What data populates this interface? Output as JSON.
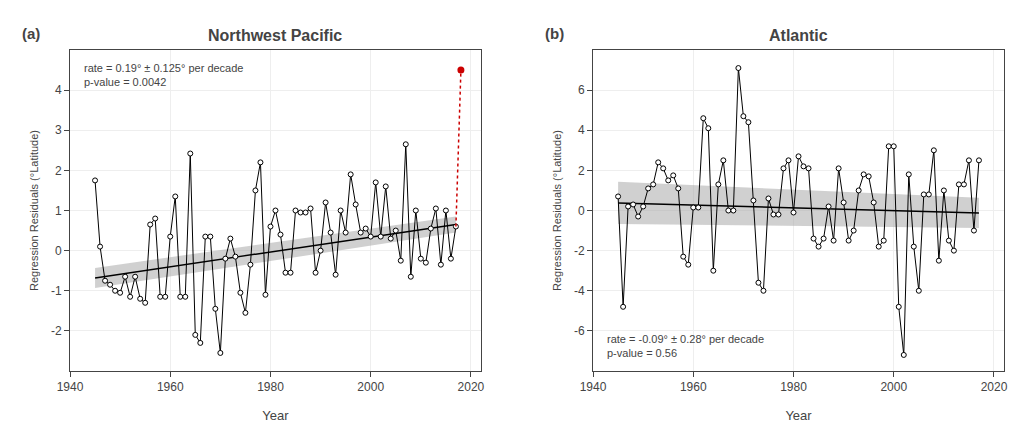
{
  "chart_data": [
    {
      "type": "line",
      "title": "Northwest Pacific",
      "panel_label": "(a)",
      "xlabel": "Year",
      "ylabel": "Regression Residuals (°Latitude)",
      "annotation": [
        "rate = 0.19° ± 0.125° per decade",
        "p-value = 0.0042"
      ],
      "xlim": [
        1940,
        2022
      ],
      "xticks": [
        1940,
        1960,
        1980,
        2000,
        2020
      ],
      "ylim": [
        -3.0,
        5.0
      ],
      "yticks": [
        -2,
        -1,
        0,
        1,
        2,
        3,
        4
      ],
      "grid": true,
      "series": [
        {
          "type": "band",
          "color": "#aaaaaa",
          "x": [
            1945,
            2017
          ],
          "lower": [
            -0.93,
            0.45
          ],
          "upper": [
            -0.43,
            0.85
          ]
        },
        {
          "type": "line",
          "color": "#000000",
          "x": [
            1945,
            2017
          ],
          "values": [
            -0.68,
            0.65
          ]
        },
        {
          "type": "line",
          "color": "#000000",
          "marker": "open circle",
          "x": [
            1945,
            1946,
            1947,
            1948,
            1949,
            1950,
            1951,
            1952,
            1953,
            1954,
            1955,
            1956,
            1957,
            1958,
            1959,
            1960,
            1961,
            1962,
            1963,
            1964,
            1965,
            1966,
            1967,
            1968,
            1969,
            1970,
            1971,
            1972,
            1973,
            1974,
            1975,
            1976,
            1977,
            1978,
            1979,
            1980,
            1981,
            1982,
            1983,
            1984,
            1985,
            1986,
            1987,
            1988,
            1989,
            1990,
            1991,
            1992,
            1993,
            1994,
            1995,
            1996,
            1997,
            1998,
            1999,
            2000,
            2001,
            2002,
            2003,
            2004,
            2005,
            2006,
            2007,
            2008,
            2009,
            2010,
            2011,
            2012,
            2013,
            2014,
            2015,
            2016,
            2017
          ],
          "values": [
            1.75,
            0.1,
            -0.75,
            -0.85,
            -1.0,
            -1.05,
            -0.65,
            -1.15,
            -0.65,
            -1.2,
            -1.3,
            0.65,
            0.8,
            -1.15,
            -1.15,
            0.35,
            1.35,
            -1.15,
            -1.15,
            2.42,
            -2.1,
            -2.3,
            0.35,
            0.35,
            -1.45,
            -2.55,
            -0.2,
            0.3,
            -0.15,
            -1.05,
            -1.55,
            -0.35,
            1.5,
            2.2,
            -1.1,
            0.6,
            1.0,
            0.4,
            -0.55,
            -0.55,
            1.0,
            0.95,
            0.95,
            1.05,
            -0.55,
            0.0,
            1.2,
            0.45,
            -0.6,
            1.0,
            0.45,
            1.9,
            1.15,
            0.45,
            0.55,
            0.35,
            1.7,
            0.35,
            1.6,
            0.3,
            0.5,
            -0.25,
            2.65,
            -0.65,
            1.0,
            -0.2,
            -0.3,
            0.55,
            1.05,
            -0.35,
            1.0,
            -0.2,
            0.6
          ]
        },
        {
          "type": "line",
          "color": "#cc0000",
          "line_style": "dotted",
          "x": [
            2017,
            2018
          ],
          "values": [
            0.6,
            4.5
          ]
        },
        {
          "type": "scatter",
          "color": "#cc0000",
          "x": [
            2018
          ],
          "values": [
            4.5
          ]
        }
      ]
    },
    {
      "type": "line",
      "title": "Atlantic",
      "panel_label": "(b)",
      "xlabel": "Year",
      "ylabel": "Regression Residuals (°Latitude)",
      "annotation": [
        "rate = -0.09° ± 0.28° per decade",
        "p-value = 0.56"
      ],
      "xlim": [
        1940,
        2022
      ],
      "xticks": [
        1940,
        1960,
        1980,
        2000,
        2020
      ],
      "ylim": [
        -8.0,
        8.0
      ],
      "yticks": [
        -6,
        -4,
        -2,
        0,
        2,
        4,
        6
      ],
      "grid": true,
      "series": [
        {
          "type": "band",
          "color": "#aaaaaa",
          "x": [
            1945,
            2017
          ],
          "lower": [
            -0.67,
            -0.87
          ],
          "upper": [
            1.43,
            0.63
          ]
        },
        {
          "type": "line",
          "color": "#000000",
          "x": [
            1945,
            2017
          ],
          "values": [
            0.38,
            -0.12
          ]
        },
        {
          "type": "line",
          "color": "#000000",
          "marker": "open circle",
          "x": [
            1945,
            1946,
            1947,
            1948,
            1949,
            1950,
            1951,
            1952,
            1953,
            1954,
            1955,
            1956,
            1957,
            1958,
            1959,
            1960,
            1961,
            1962,
            1963,
            1964,
            1965,
            1966,
            1967,
            1968,
            1969,
            1970,
            1971,
            1972,
            1973,
            1974,
            1975,
            1976,
            1977,
            1978,
            1979,
            1980,
            1981,
            1982,
            1983,
            1984,
            1985,
            1986,
            1987,
            1988,
            1989,
            1990,
            1991,
            1992,
            1993,
            1994,
            1995,
            1996,
            1997,
            1998,
            1999,
            2000,
            2001,
            2002,
            2003,
            2004,
            2005,
            2006,
            2007,
            2008,
            2009,
            2010,
            2011,
            2012,
            2013,
            2014,
            2015,
            2016,
            2017
          ],
          "values": [
            0.7,
            -4.8,
            0.2,
            0.3,
            -0.3,
            0.2,
            1.1,
            1.3,
            2.4,
            2.1,
            1.5,
            1.75,
            1.1,
            -2.3,
            -2.7,
            0.15,
            0.15,
            4.6,
            4.1,
            -3.0,
            1.3,
            2.5,
            0.0,
            0.0,
            7.1,
            4.7,
            4.4,
            0.5,
            -3.6,
            -4.0,
            0.6,
            -0.2,
            -0.2,
            2.1,
            2.5,
            -0.1,
            2.7,
            2.2,
            2.1,
            -1.4,
            -1.8,
            -1.4,
            0.2,
            -1.5,
            2.1,
            0.4,
            -1.5,
            -1.0,
            1.0,
            1.8,
            1.7,
            0.4,
            -1.8,
            -1.5,
            3.2,
            3.2,
            -4.8,
            -7.2,
            1.8,
            -1.8,
            -4.0,
            0.8,
            0.8,
            3.0,
            -2.5,
            1.0,
            -1.5,
            -2.0,
            1.3,
            1.3,
            2.5,
            -1.0,
            2.5
          ]
        }
      ]
    }
  ]
}
